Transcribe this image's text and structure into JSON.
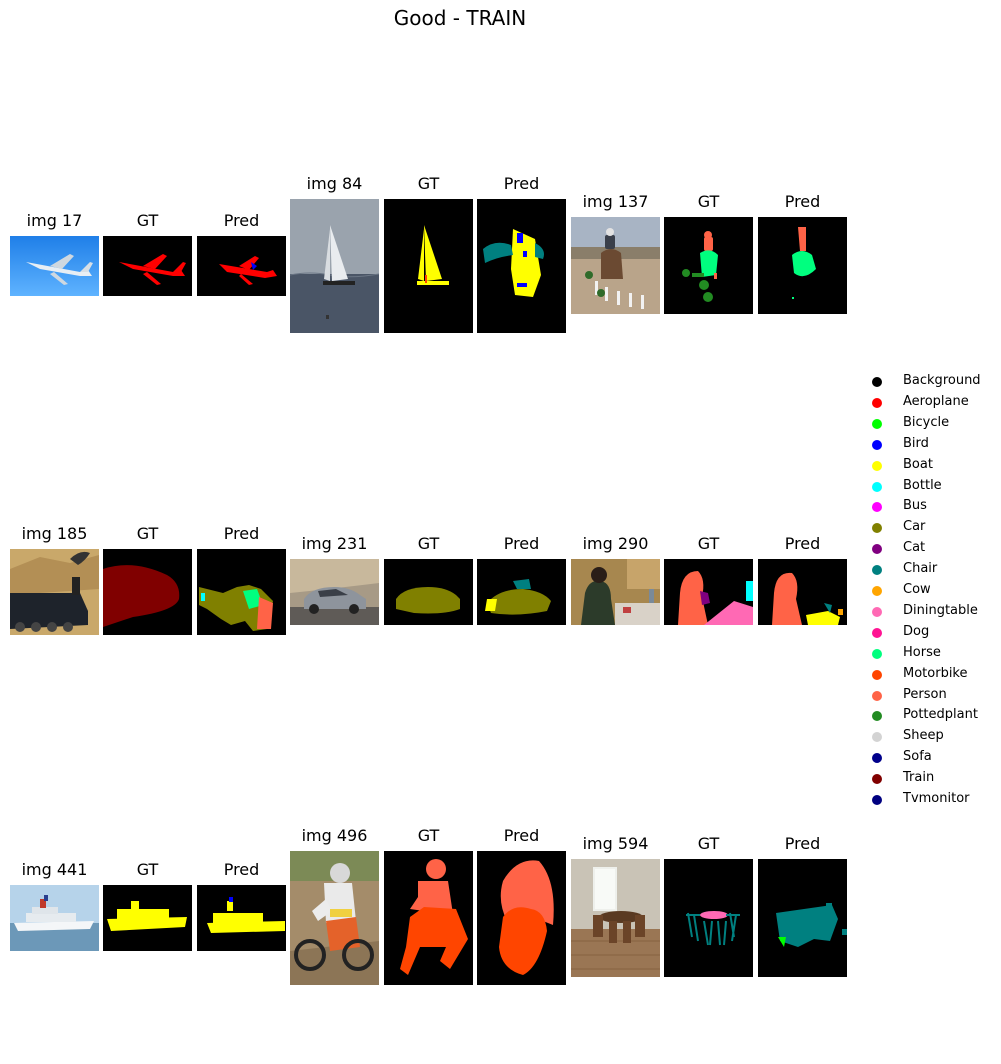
{
  "figure": {
    "title": "Good - TRAIN"
  },
  "panels": [
    {
      "image_label": "img 17",
      "gt_label": "GT",
      "pred_label": "Pred",
      "scene": "aeroplane"
    },
    {
      "image_label": "img 84",
      "gt_label": "GT",
      "pred_label": "Pred",
      "scene": "boat"
    },
    {
      "image_label": "img 137",
      "gt_label": "GT",
      "pred_label": "Pred",
      "scene": "horse"
    },
    {
      "image_label": "img 185",
      "gt_label": "GT",
      "pred_label": "Pred",
      "scene": "train"
    },
    {
      "image_label": "img 231",
      "gt_label": "GT",
      "pred_label": "Pred",
      "scene": "car"
    },
    {
      "image_label": "img 290",
      "gt_label": "GT",
      "pred_label": "Pred",
      "scene": "person-dining"
    },
    {
      "image_label": "img 441",
      "gt_label": "GT",
      "pred_label": "Pred",
      "scene": "ship"
    },
    {
      "image_label": "img 496",
      "gt_label": "GT",
      "pred_label": "Pred",
      "scene": "motorbike"
    },
    {
      "image_label": "img 594",
      "gt_label": "GT",
      "pred_label": "Pred",
      "scene": "dining-room"
    }
  ],
  "legend": [
    {
      "label": "Background",
      "color": "#000000"
    },
    {
      "label": "Aeroplane",
      "color": "#ff0000"
    },
    {
      "label": "Bicycle",
      "color": "#00ff00"
    },
    {
      "label": "Bird",
      "color": "#0000ff"
    },
    {
      "label": "Boat",
      "color": "#ffff00"
    },
    {
      "label": "Bottle",
      "color": "#00ffff"
    },
    {
      "label": "Bus",
      "color": "#ff00ff"
    },
    {
      "label": "Car",
      "color": "#808000"
    },
    {
      "label": "Cat",
      "color": "#800080"
    },
    {
      "label": "Chair",
      "color": "#008080"
    },
    {
      "label": "Cow",
      "color": "#ffa500"
    },
    {
      "label": "Diningtable",
      "color": "#ff69b4"
    },
    {
      "label": "Dog",
      "color": "#ff1493"
    },
    {
      "label": "Horse",
      "color": "#00ff7f"
    },
    {
      "label": "Motorbike",
      "color": "#ff4500"
    },
    {
      "label": "Person",
      "color": "#ff6347"
    },
    {
      "label": "Pottedplant",
      "color": "#228b22"
    },
    {
      "label": "Sheep",
      "color": "#d3d3d3"
    },
    {
      "label": "Sofa",
      "color": "#00008b"
    },
    {
      "label": "Train",
      "color": "#800000"
    },
    {
      "label": "Tvmonitor",
      "color": "#000080"
    }
  ]
}
